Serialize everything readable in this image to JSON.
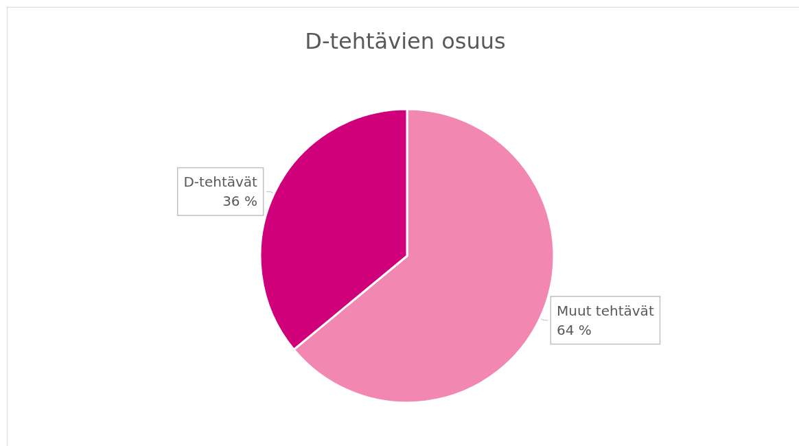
{
  "chart_data": {
    "type": "pie",
    "title": "D-tehtävien osuus",
    "categories": [
      "Muut tehtävät",
      "D-tehtävät"
    ],
    "values": [
      64,
      36
    ],
    "value_labels": [
      "64 %",
      "36 %"
    ],
    "colors": [
      "#f288b2",
      "#d0007a"
    ],
    "legend": false
  }
}
